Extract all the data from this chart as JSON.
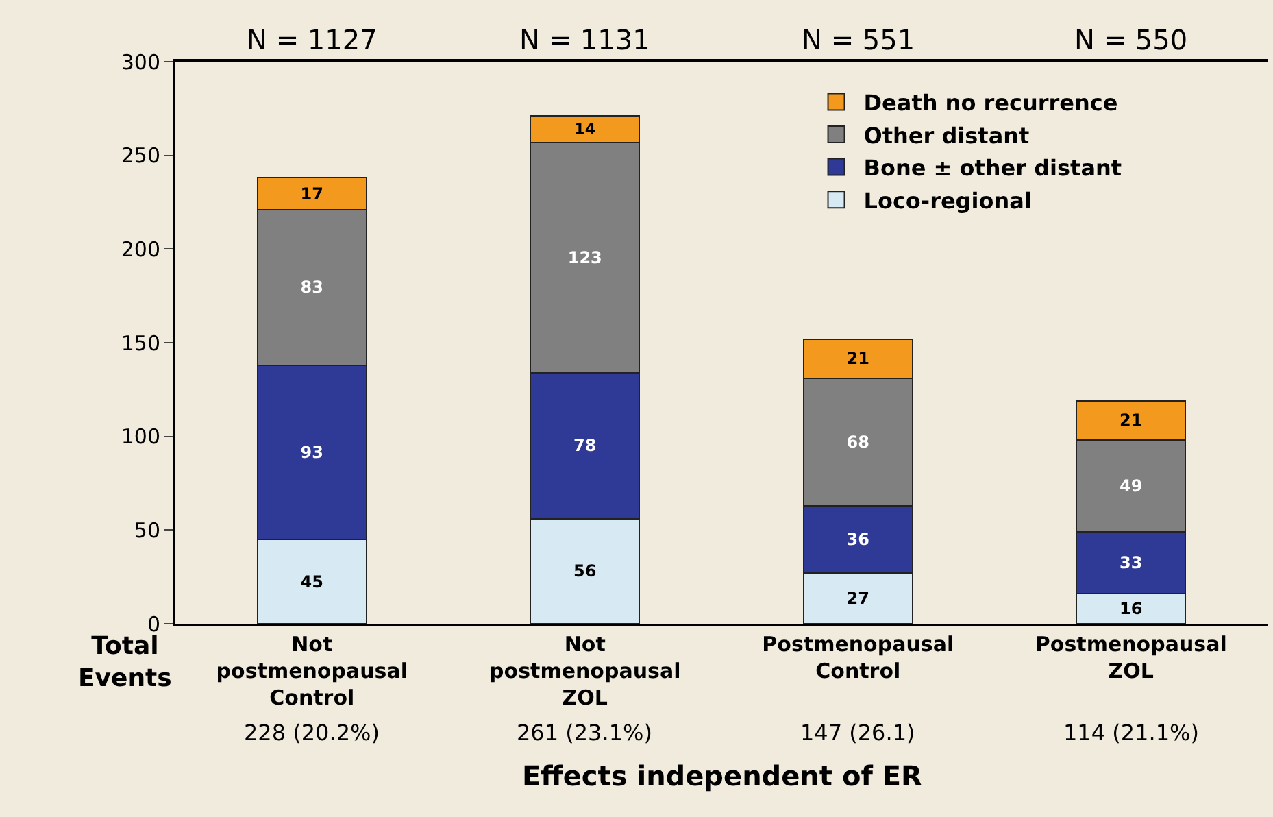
{
  "chart_data": {
    "type": "bar",
    "stacked": true,
    "xlabel": "Effects independent of ER",
    "categories": [
      "Not\npostmenopausal\nControl",
      "Not\npostmenopausal\nZOL",
      "Postmenopausal\nControl",
      "Postmenopausal\nZOL"
    ],
    "series": [
      {
        "name": "Loco-regional",
        "color": "#d7eaf3",
        "values": [
          45,
          56,
          27,
          16
        ]
      },
      {
        "name": "Bone ± other distant",
        "color": "#2e3a96",
        "values": [
          93,
          78,
          36,
          33
        ]
      },
      {
        "name": "Other distant",
        "color": "#808080",
        "values": [
          83,
          123,
          68,
          49
        ]
      },
      {
        "name": "Death no recurrence",
        "color": "#f39a1e",
        "values": [
          17,
          14,
          21,
          21
        ]
      }
    ],
    "data_labels": true,
    "ylim": [
      0,
      300
    ],
    "yticks": [
      0,
      50,
      100,
      150,
      200,
      250,
      300
    ],
    "grid": false,
    "legend": "top right",
    "annotations": [
      "N = 1127",
      "N = 1131",
      "N = 551",
      "N = 550",
      "Total\nEvents",
      "228 (20.2%)",
      "261 (23.1%)",
      "147 (26.1)",
      "114 (21.1%)"
    ]
  }
}
